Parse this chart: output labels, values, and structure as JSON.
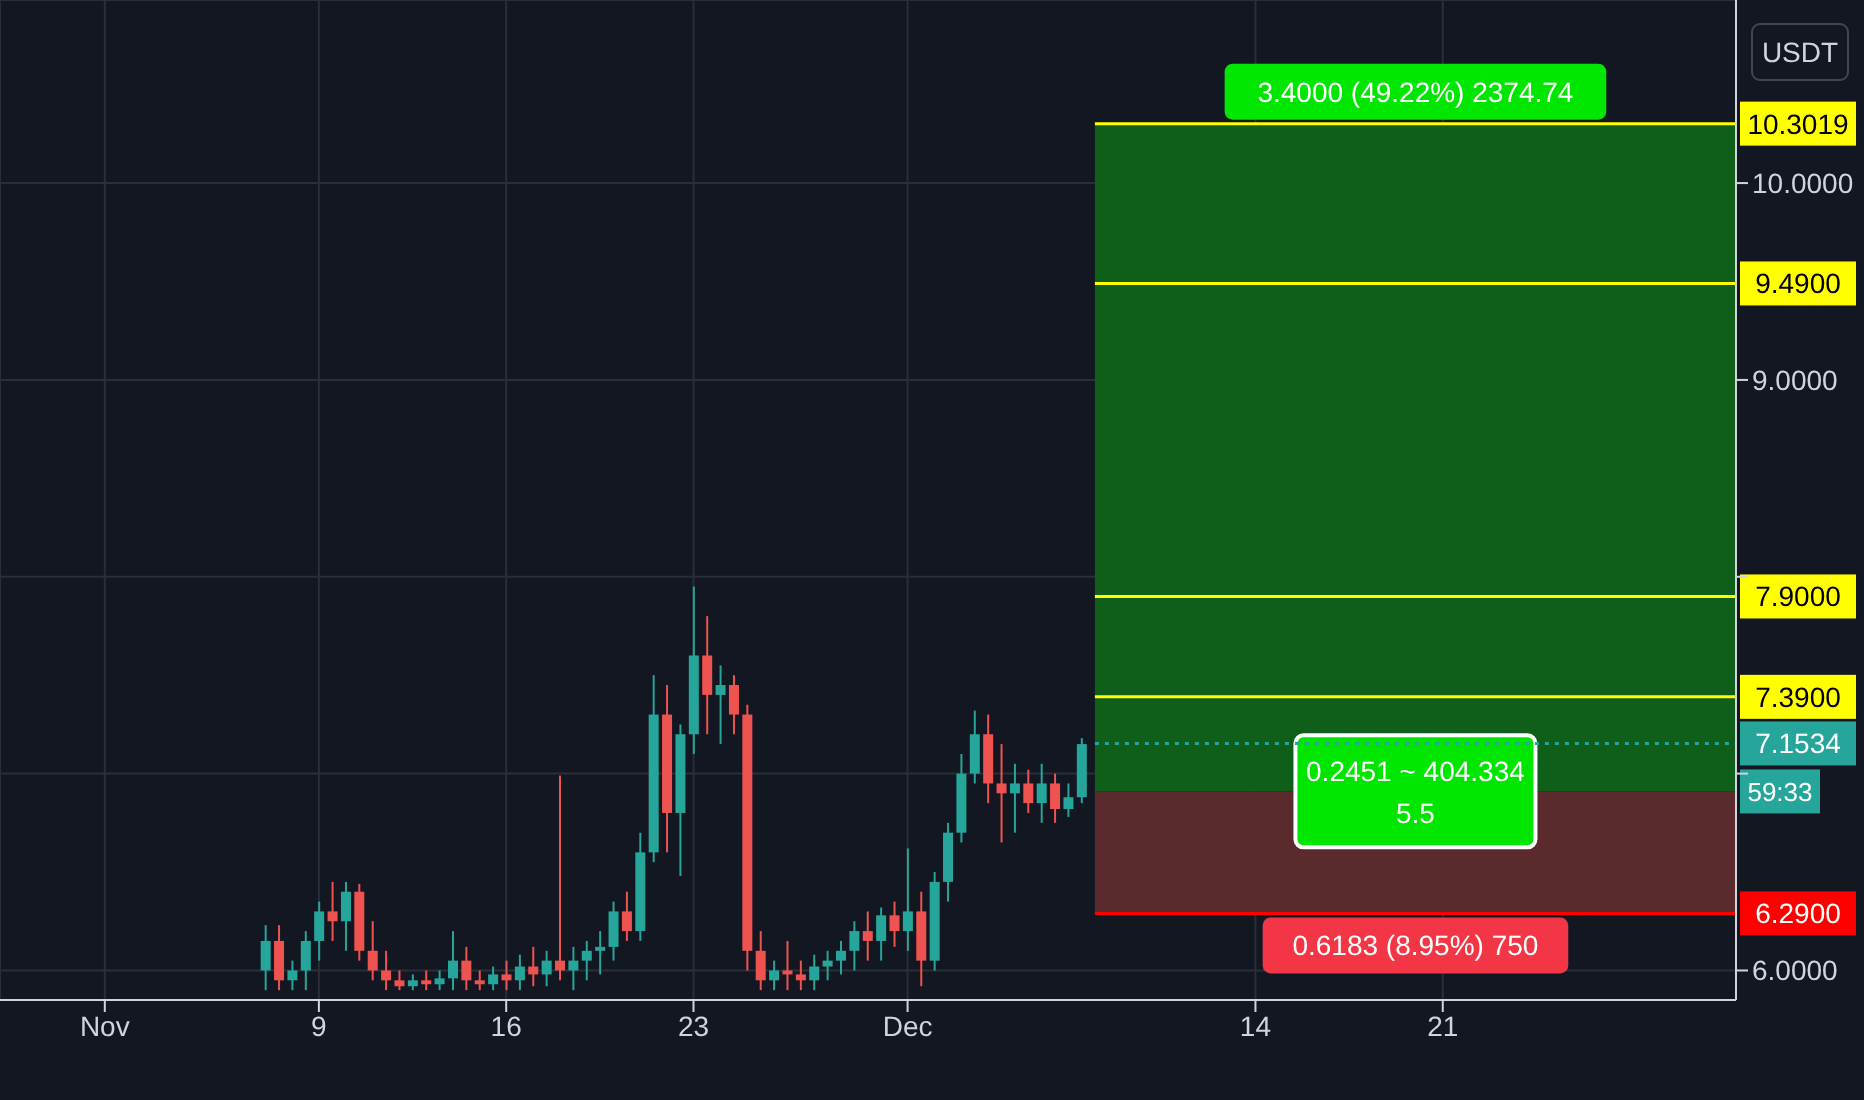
{
  "chart_data": {
    "type": "candlestick",
    "ylabel": "USDT",
    "x": [
      "--11-07T00:00",
      "--11-07T12:00",
      "--11-08T00:00",
      "--11-08T12:00",
      "--11-09T00:00",
      "--11-09T12:00",
      "--11-10T00:00",
      "--11-10T12:00",
      "--11-11T00:00",
      "--11-11T12:00",
      "--11-12T00:00",
      "--11-12T12:00",
      "--11-13T00:00",
      "--11-13T12:00",
      "--11-14T00:00",
      "--11-14T12:00",
      "--11-15T00:00",
      "--11-15T12:00",
      "--11-16T00:00",
      "--11-16T12:00",
      "--11-17T00:00",
      "--11-17T12:00",
      "--11-18T00:00",
      "--11-18T12:00",
      "--11-19T00:00",
      "--11-19T12:00",
      "--11-20T00:00",
      "--11-20T12:00",
      "--11-21T00:00",
      "--11-21T12:00",
      "--11-22T00:00",
      "--11-22T12:00",
      "--11-23T00:00",
      "--11-23T12:00",
      "--11-24T00:00",
      "--11-24T12:00",
      "--11-25T00:00",
      "--11-25T12:00",
      "--11-26T00:00",
      "--11-26T12:00",
      "--11-27T00:00",
      "--11-27T12:00",
      "--11-28T00:00",
      "--11-28T12:00",
      "--11-29T00:00",
      "--11-29T12:00",
      "--11-30T00:00",
      "--11-30T12:00",
      "--12-01T00:00",
      "--12-01T12:00",
      "--12-02T00:00",
      "--12-02T12:00",
      "--12-03T00:00",
      "--12-03T12:00",
      "--12-04T00:00",
      "--12-04T12:00",
      "--12-05T00:00",
      "--12-05T12:00",
      "--12-06T00:00",
      "--12-06T12:00",
      "--12-07T00:00",
      "--12-07T12:00"
    ],
    "ohlc": [
      [
        6.0,
        6.23,
        5.9,
        6.15
      ],
      [
        6.15,
        6.23,
        5.9,
        5.95
      ],
      [
        5.95,
        6.05,
        5.9,
        6.0
      ],
      [
        6.0,
        6.2,
        5.9,
        6.15
      ],
      [
        6.15,
        6.35,
        6.05,
        6.3
      ],
      [
        6.3,
        6.45,
        6.15,
        6.25
      ],
      [
        6.25,
        6.45,
        6.1,
        6.4
      ],
      [
        6.4,
        6.44,
        6.05,
        6.1
      ],
      [
        6.1,
        6.25,
        5.95,
        6.0
      ],
      [
        6.0,
        6.1,
        5.9,
        5.95
      ],
      [
        5.95,
        6.0,
        5.9,
        5.92
      ],
      [
        5.92,
        5.98,
        5.9,
        5.95
      ],
      [
        5.95,
        6.0,
        5.9,
        5.93
      ],
      [
        5.93,
        6.0,
        5.9,
        5.96
      ],
      [
        5.96,
        6.2,
        5.9,
        6.05
      ],
      [
        6.05,
        6.12,
        5.9,
        5.95
      ],
      [
        5.95,
        6.0,
        5.9,
        5.93
      ],
      [
        5.93,
        6.02,
        5.9,
        5.98
      ],
      [
        5.98,
        6.05,
        5.9,
        5.95
      ],
      [
        5.95,
        6.08,
        5.9,
        6.02
      ],
      [
        6.02,
        6.12,
        5.92,
        5.98
      ],
      [
        5.98,
        6.1,
        5.92,
        6.05
      ],
      [
        6.05,
        6.99,
        5.95,
        6.0
      ],
      [
        6.0,
        6.12,
        5.9,
        6.05
      ],
      [
        6.05,
        6.15,
        5.95,
        6.1
      ],
      [
        6.1,
        6.2,
        5.98,
        6.12
      ],
      [
        6.12,
        6.35,
        6.05,
        6.3
      ],
      [
        6.3,
        6.4,
        6.15,
        6.2
      ],
      [
        6.2,
        6.7,
        6.15,
        6.6
      ],
      [
        6.6,
        7.5,
        6.55,
        7.3
      ],
      [
        7.3,
        7.45,
        6.6,
        6.8
      ],
      [
        6.8,
        7.25,
        6.48,
        7.2
      ],
      [
        7.2,
        7.95,
        7.1,
        7.6
      ],
      [
        7.6,
        7.8,
        7.2,
        7.4
      ],
      [
        7.4,
        7.55,
        7.15,
        7.45
      ],
      [
        7.45,
        7.5,
        7.2,
        7.3
      ],
      [
        7.3,
        7.35,
        6.0,
        6.1
      ],
      [
        6.1,
        6.2,
        5.9,
        5.95
      ],
      [
        5.95,
        6.05,
        5.9,
        6.0
      ],
      [
        6.0,
        6.15,
        5.9,
        5.98
      ],
      [
        5.98,
        6.05,
        5.9,
        5.95
      ],
      [
        5.95,
        6.08,
        5.9,
        6.02
      ],
      [
        6.02,
        6.1,
        5.95,
        6.05
      ],
      [
        6.05,
        6.15,
        5.98,
        6.1
      ],
      [
        6.1,
        6.25,
        6.0,
        6.2
      ],
      [
        6.2,
        6.3,
        6.05,
        6.15
      ],
      [
        6.15,
        6.32,
        6.05,
        6.28
      ],
      [
        6.28,
        6.35,
        6.12,
        6.2
      ],
      [
        6.2,
        6.62,
        6.1,
        6.3
      ],
      [
        6.3,
        6.4,
        5.92,
        6.05
      ],
      [
        6.05,
        6.5,
        6.0,
        6.45
      ],
      [
        6.45,
        6.75,
        6.35,
        6.7
      ],
      [
        6.7,
        7.1,
        6.65,
        7.0
      ],
      [
        7.0,
        7.32,
        6.95,
        7.2
      ],
      [
        7.2,
        7.3,
        6.85,
        6.95
      ],
      [
        6.95,
        7.15,
        6.65,
        6.9
      ],
      [
        6.9,
        7.05,
        6.7,
        6.95
      ],
      [
        6.95,
        7.02,
        6.8,
        6.85
      ],
      [
        6.85,
        7.05,
        6.75,
        6.95
      ],
      [
        6.95,
        7.0,
        6.75,
        6.82
      ],
      [
        6.82,
        6.95,
        6.78,
        6.88
      ],
      [
        6.88,
        7.18,
        6.85,
        7.15
      ]
    ],
    "colors": [
      "#26a69a",
      "#ef5350",
      "#26a69a",
      "#26a69a",
      "#26a69a",
      "#ef5350",
      "#26a69a",
      "#ef5350",
      "#ef5350",
      "#ef5350",
      "#ef5350",
      "#26a69a",
      "#ef5350",
      "#26a69a",
      "#26a69a",
      "#ef5350",
      "#ef5350",
      "#26a69a",
      "#ef5350",
      "#26a69a",
      "#ef5350",
      "#26a69a",
      "#ef5350",
      "#26a69a",
      "#26a69a",
      "#26a69a",
      "#26a69a",
      "#ef5350",
      "#26a69a",
      "#26a69a",
      "#ef5350",
      "#26a69a",
      "#26a69a",
      "#ef5350",
      "#26a69a",
      "#ef5350",
      "#ef5350",
      "#ef5350",
      "#26a69a",
      "#ef5350",
      "#ef5350",
      "#26a69a",
      "#26a69a",
      "#26a69a",
      "#26a69a",
      "#ef5350",
      "#26a69a",
      "#ef5350",
      "#26a69a",
      "#ef5350",
      "#26a69a",
      "#26a69a",
      "#26a69a",
      "#26a69a",
      "#ef5350",
      "#ef5350",
      "#26a69a",
      "#ef5350",
      "#26a69a",
      "#ef5350",
      "#26a69a",
      "#26a69a"
    ],
    "xlim": [
      "--10-28T02:00",
      "--12-31T23:00"
    ],
    "xticks": [
      {
        "value": "--11-01",
        "label": "Nov"
      },
      {
        "value": "--11-09",
        "label": "9"
      },
      {
        "value": "--11-16",
        "label": "16"
      },
      {
        "value": "--11-23",
        "label": "23"
      },
      {
        "value": "--12-01",
        "label": "Dec"
      },
      {
        "value": "--12-14",
        "label": "14"
      },
      {
        "value": "--12-21",
        "label": "21"
      }
    ],
    "ylim": [
      5.85,
      10.93
    ],
    "yticks": [
      {
        "value": 6,
        "label": "6.0000"
      },
      {
        "value": 7,
        "label": null
      },
      {
        "value": 8,
        "label": null
      },
      {
        "value": 9,
        "label": "9.0000"
      },
      {
        "value": 10,
        "label": "10.0000"
      }
    ],
    "grid": true,
    "bands": [
      {
        "axis": "y",
        "from": 6.91,
        "to": 10.3019,
        "label": "3.4000 (49.22%) 2374.74",
        "color": "#0f5e1a"
      },
      {
        "axis": "y",
        "from": 6.29,
        "to": 6.91,
        "label": "0.6183 (8.95%) 750",
        "color": "#5a2a2c"
      }
    ],
    "ref_lines": [
      {
        "axis": "y",
        "value": 10.3019,
        "label": "10.3019",
        "color": "#ffff00"
      },
      {
        "axis": "y",
        "value": 9.49,
        "label": "9.4900",
        "color": "#ffff00"
      },
      {
        "axis": "y",
        "value": 7.9,
        "label": "7.9000",
        "color": "#ffff00"
      },
      {
        "axis": "y",
        "value": 7.39,
        "label": "7.3900",
        "color": "#ffff00"
      },
      {
        "axis": "y",
        "value": 6.29,
        "label": "6.2900",
        "color": "#ff0000"
      },
      {
        "axis": "y",
        "value": 7.1534,
        "label": "7.1534",
        "color": "#26a69a",
        "line_style": "dotted"
      }
    ],
    "annotations": [
      "0.2451 ~ 404.334",
      "5.5",
      "59:33"
    ]
  }
}
